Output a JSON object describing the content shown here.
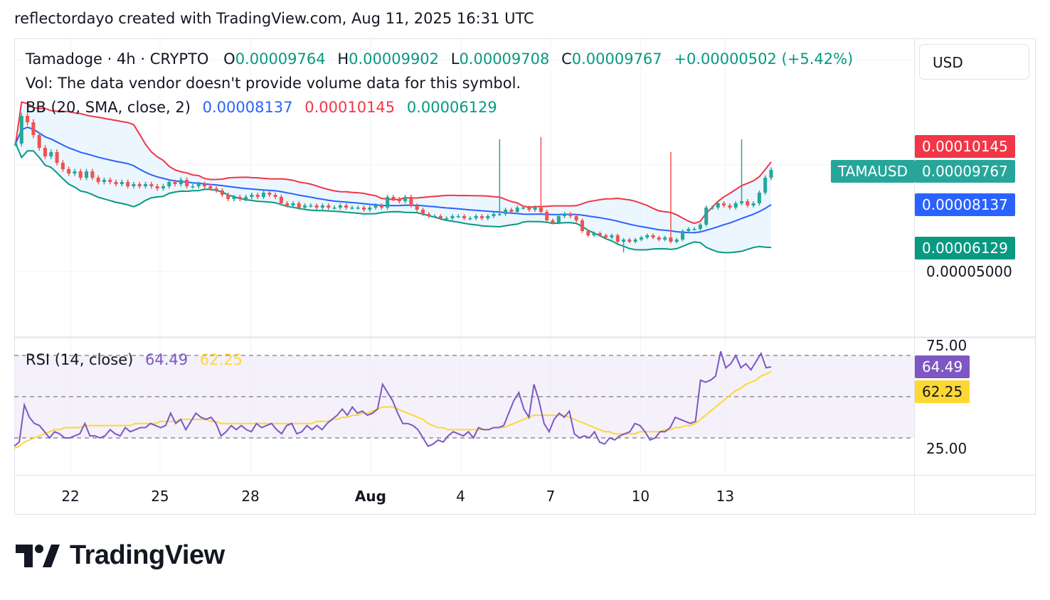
{
  "header": {
    "text": "reflectordayo created with TradingView.com, Aug 11, 2025 16:31 UTC"
  },
  "legend": {
    "symbol": "Tamadoge · 4h · CRYPTO",
    "o_label": "O",
    "o_value": "0.00009764",
    "h_label": "H",
    "h_value": "0.00009902",
    "l_label": "L",
    "l_value": "0.00009708",
    "c_label": "C",
    "c_value": "0.00009767",
    "change": "+0.00000502 (+5.42%)",
    "vol_text": "Vol: The data vendor doesn't provide volume data for this symbol.",
    "bb_label": "BB (20, SMA, close, 2)",
    "bb_basis": "0.00008137",
    "bb_upper": "0.00010145",
    "bb_lower": "0.00006129",
    "rsi_label": "RSI (14, close)",
    "rsi_value": "64.49",
    "rsi_ma_value": "62.25"
  },
  "currency_button": "USD",
  "price_tags": {
    "symbol_tag": "TAMAUSD",
    "last": "0.00009767",
    "upper": "0.00010145",
    "basis": "0.00008137",
    "lower": "0.00006129",
    "axis_level": "0.00005000"
  },
  "rsi_axis": {
    "top": "75.00",
    "bottom": "25.00",
    "rsi_tag": "64.49",
    "ma_tag": "62.25"
  },
  "x_axis": [
    {
      "label": "22",
      "pos": 0.0625
    },
    {
      "label": "25",
      "pos": 0.162
    },
    {
      "label": "28",
      "pos": 0.2625
    },
    {
      "label": "Aug",
      "pos": 0.396
    },
    {
      "label": "4",
      "pos": 0.496
    },
    {
      "label": "7",
      "pos": 0.596
    },
    {
      "label": "10",
      "pos": 0.696
    },
    {
      "label": "13",
      "pos": 0.79
    }
  ],
  "logo": {
    "text": "TradingView"
  },
  "colors": {
    "up": "#26a69a",
    "down": "#ef5350",
    "bb_basis": "#2962ff",
    "bb_upper": "#f23645",
    "bb_lower": "#089981",
    "bb_fill": "#e3f2fd",
    "rsi": "#7e57c2",
    "rsi_ma": "#fdd835",
    "rsi_band": "#ede7f6"
  },
  "chart_data": [
    {
      "type": "candlestick",
      "title": "Tamadoge · 4h · CRYPTO",
      "x_range": [
        "Jul 19 2025",
        "Aug 11 2025 16:00"
      ],
      "y_range": [
        3.5e-05,
        0.000125
      ],
      "y_ticks": [
        "0.00005000"
      ],
      "grid": true,
      "close": [
        0.00011,
        0.000123,
        0.00012,
        0.000114,
        0.000108,
        0.000104,
        0.000106,
        0.000101,
        9.8e-05,
        9.6e-05,
        9.7e-05,
        9.4e-05,
        9.7e-05,
        9.4e-05,
        9.2e-05,
        9.3e-05,
        9.2e-05,
        9.1e-05,
        9.2e-05,
        9e-05,
        9.1e-05,
        9e-05,
        9.1e-05,
        9e-05,
        8.9e-05,
        9e-05,
        9.2e-05,
        9.1e-05,
        9.3e-05,
        9e-05,
        9e-05,
        9.1e-05,
        9e-05,
        8.9e-05,
        8.8e-05,
        8.6e-05,
        8.4e-05,
        8.5e-05,
        8.4e-05,
        8.5e-05,
        8.6e-05,
        8.5e-05,
        8.7e-05,
        8.6e-05,
        8.5e-05,
        8.2e-05,
        8.1e-05,
        8.2e-05,
        8e-05,
        8.1e-05,
        8.1e-05,
        8e-05,
        8.1e-05,
        8e-05,
        8e-05,
        8.1e-05,
        8e-05,
        8e-05,
        8e-05,
        7.9e-05,
        8e-05,
        8.1e-05,
        8e-05,
        8.5e-05,
        8.4e-05,
        8.3e-05,
        8.5e-05,
        8.1e-05,
        7.9e-05,
        7.7e-05,
        7.6e-05,
        7.6e-05,
        7.5e-05,
        7.5e-05,
        7.6e-05,
        7.6e-05,
        7.5e-05,
        7.5e-05,
        7.6e-05,
        7.5e-05,
        7.6e-05,
        7.7e-05,
        7.7e-05,
        7.9e-05,
        7.8e-05,
        8e-05,
        8e-05,
        7.9e-05,
        8e-05,
        7.8e-05,
        7.4e-05,
        7.3e-05,
        7.6e-05,
        7.7e-05,
        7.6e-05,
        7.4e-05,
        6.9e-05,
        6.7e-05,
        6.8e-05,
        6.7e-05,
        6.6e-05,
        6.7e-05,
        6.4e-05,
        6.5e-05,
        6.4e-05,
        6.5e-05,
        6.6e-05,
        6.7e-05,
        6.6e-05,
        6.5e-05,
        6.6e-05,
        6.4e-05,
        6.5e-05,
        6.9e-05,
        7e-05,
        7e-05,
        7.2e-05,
        8e-05,
        8e-05,
        8.2e-05,
        8.1e-05,
        8e-05,
        8.2e-05,
        8.3e-05,
        8.1e-05,
        8.2e-05,
        8.7e-05,
        9.4e-05,
        9.767e-05
      ],
      "bb_upper_end": 0.00010145,
      "bb_basis_end": 8.137e-05,
      "bb_lower_end": 6.129e-05
    },
    {
      "type": "line",
      "title": "RSI (14, close)",
      "y_range": [
        0,
        100
      ],
      "bands": [
        30,
        50,
        70
      ],
      "y_ticks": [
        "75.00",
        "25.00"
      ],
      "series": [
        {
          "name": "RSI",
          "values": [
            26,
            28,
            46,
            40,
            37,
            36,
            33,
            30,
            33,
            32,
            30,
            30,
            31,
            32,
            37,
            31,
            31,
            30,
            31,
            34,
            32,
            31,
            35,
            33,
            34,
            35,
            35,
            37,
            36,
            35,
            36,
            42,
            37,
            39,
            34,
            38,
            42,
            40,
            39,
            40,
            37,
            31,
            33,
            36,
            34,
            36,
            34,
            33,
            37,
            35,
            36,
            37,
            34,
            32,
            36,
            37,
            32,
            33,
            36,
            34,
            36,
            34,
            37,
            39,
            41,
            44,
            41,
            45,
            42,
            43,
            41,
            42,
            44,
            56,
            52,
            48,
            42,
            37,
            37,
            36,
            34,
            30,
            26,
            27,
            29,
            28,
            31,
            33,
            32,
            31,
            33,
            30,
            35,
            34,
            34,
            35,
            35,
            36,
            42,
            48,
            52,
            44,
            40,
            56,
            48,
            37,
            33,
            39,
            42,
            40,
            43,
            32,
            30,
            31,
            30,
            33,
            28,
            27,
            30,
            29,
            31,
            32,
            33,
            37,
            36,
            33,
            29,
            30,
            33,
            33,
            35,
            40,
            39,
            38,
            37,
            38,
            58,
            57,
            58,
            60,
            72,
            64,
            66,
            70,
            64,
            66,
            63,
            67,
            71,
            64,
            64.49
          ]
        },
        {
          "name": "RSI-based MA",
          "values": [
            25,
            26,
            28,
            29,
            30,
            31,
            32,
            33,
            34,
            34,
            35,
            35,
            35,
            35,
            36,
            36,
            36,
            36,
            36,
            36,
            36,
            36,
            36,
            36,
            37,
            37,
            37,
            37,
            37,
            38,
            38,
            38,
            38,
            39,
            39,
            39,
            39,
            39,
            39,
            38,
            38,
            37,
            37,
            37,
            37,
            37,
            37,
            37,
            37,
            37,
            37,
            37,
            37,
            37,
            37,
            37,
            37,
            37,
            37,
            37,
            38,
            38,
            38,
            39,
            39,
            40,
            40,
            41,
            41,
            42,
            42,
            43,
            44,
            45,
            45,
            45,
            44,
            43,
            42,
            41,
            40,
            39,
            37,
            36,
            35,
            35,
            34,
            34,
            34,
            34,
            34,
            34,
            34,
            34,
            34,
            35,
            35,
            35,
            36,
            37,
            38,
            39,
            40,
            41,
            41,
            41,
            41,
            41,
            41,
            41,
            40,
            39,
            38,
            37,
            36,
            35,
            34,
            33,
            33,
            32,
            32,
            32,
            32,
            32,
            33,
            33,
            33,
            33,
            33,
            34,
            34,
            35,
            35,
            36,
            36,
            37,
            39,
            41,
            43,
            45,
            47,
            49,
            51,
            53,
            54,
            56,
            57,
            58,
            60,
            61,
            62.25
          ]
        }
      ]
    }
  ]
}
